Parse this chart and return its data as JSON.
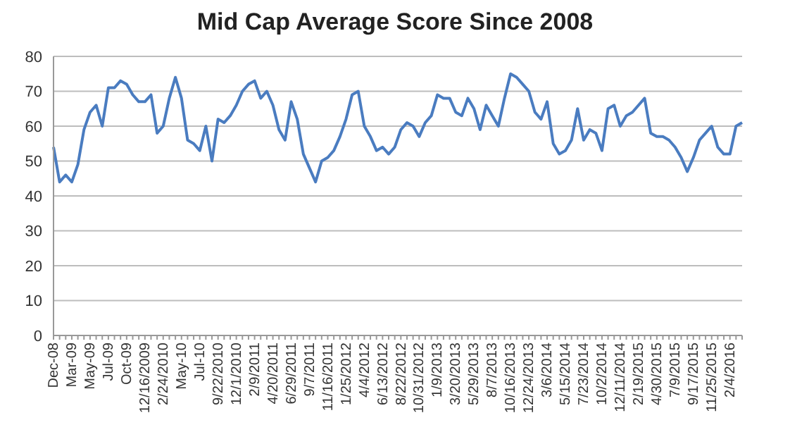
{
  "chart_data": {
    "type": "line",
    "title": "Mid Cap Average Score Since 2008",
    "categories": [
      "Dec-08",
      null,
      null,
      "Mar-09",
      null,
      null,
      "May-09",
      null,
      null,
      "Jul-09",
      null,
      null,
      "Oct-09",
      null,
      null,
      "12/16/2009",
      null,
      null,
      "2/24/2010",
      null,
      null,
      "May-10",
      null,
      null,
      "Jul-10",
      null,
      null,
      "9/22/2010",
      null,
      null,
      "12/1/2010",
      null,
      null,
      "2/9/2011",
      null,
      null,
      "4/20/2011",
      null,
      null,
      "6/29/2011",
      null,
      null,
      "9/7/2011",
      null,
      null,
      "11/16/2011",
      null,
      null,
      "1/25/2012",
      null,
      null,
      "4/4/2012",
      null,
      null,
      "6/13/2012",
      null,
      null,
      "8/22/2012",
      null,
      null,
      "10/31/2012",
      null,
      null,
      "1/9/2013",
      null,
      null,
      "3/20/2013",
      null,
      null,
      "5/29/2013",
      null,
      null,
      "8/7/2013",
      null,
      null,
      "10/16/2013",
      null,
      null,
      "12/24/2013",
      null,
      null,
      "3/6/2014",
      null,
      null,
      "5/15/2014",
      null,
      null,
      "7/23/2014",
      null,
      null,
      "10/2/2014",
      null,
      null,
      "12/11/2014",
      null,
      null,
      "2/19/2015",
      null,
      null,
      "4/30/2015",
      null,
      null,
      "7/9/2015",
      null,
      null,
      "9/17/2015",
      null,
      null,
      "11/25/2015",
      null,
      null,
      "2/4/2016",
      null,
      null
    ],
    "values": [
      54,
      44,
      46,
      44,
      49,
      59,
      64,
      66,
      60,
      71,
      71,
      73,
      72,
      69,
      67,
      67,
      69,
      58,
      60,
      68,
      74,
      68,
      56,
      55,
      53,
      60,
      50,
      62,
      61,
      63,
      66,
      70,
      72,
      73,
      68,
      70,
      66,
      59,
      56,
      67,
      62,
      52,
      48,
      44,
      50,
      51,
      53,
      57,
      62,
      69,
      70,
      60,
      57,
      53,
      54,
      52,
      54,
      59,
      61,
      60,
      57,
      61,
      63,
      69,
      68,
      68,
      64,
      63,
      68,
      65,
      59,
      66,
      63,
      60,
      68,
      75,
      74,
      72,
      70,
      64,
      62,
      67,
      55,
      52,
      53,
      56,
      65,
      56,
      59,
      58,
      53,
      65,
      66,
      60,
      63,
      64,
      66,
      68,
      58,
      57,
      57,
      56,
      54,
      51,
      47,
      51,
      56,
      58,
      60,
      54,
      52,
      52,
      60,
      61
    ],
    "color": "#4a7cc0",
    "ylim": [
      0,
      80
    ],
    "yticks": [
      0,
      10,
      20,
      30,
      40,
      50,
      60,
      70,
      80
    ],
    "grid": "y"
  }
}
